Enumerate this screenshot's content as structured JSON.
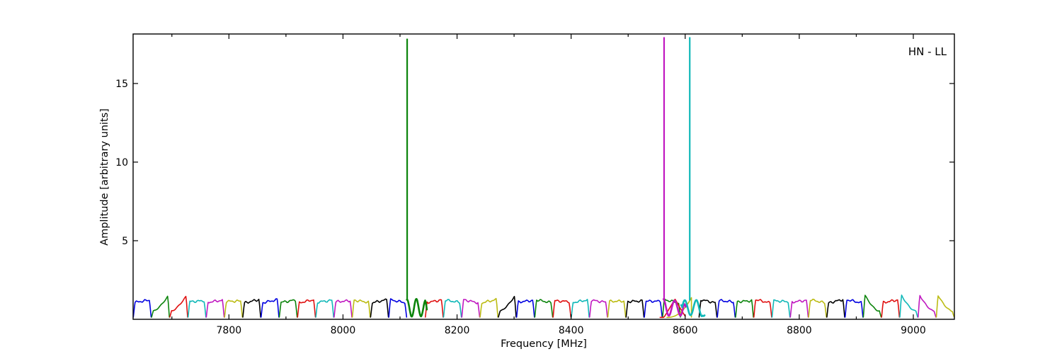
{
  "figure": {
    "annotation": "HN - LL",
    "xlabel": "Frequency [MHz]",
    "ylabel": "Amplitude [arbitrary units]"
  },
  "chart_data": {
    "type": "line",
    "title": "HN - LL",
    "xlabel": "Frequency [MHz]",
    "ylabel": "Amplitude [arbitrary units]",
    "xlim": [
      7632,
      9072
    ],
    "ylim": [
      0,
      18.15
    ],
    "x_ticks": [
      7800,
      8000,
      8200,
      8400,
      8600,
      8800,
      9000
    ],
    "x_minor_ticks": [
      7700,
      7900,
      8100,
      8300,
      8500,
      8700,
      8900
    ],
    "y_ticks": [
      5,
      10,
      15
    ],
    "grid": false,
    "legend": null,
    "band_width_mhz": 32,
    "band_plateau_amplitude": 1.15,
    "palette": {
      "b": "#0000e0",
      "g": "#0b840b",
      "r": "#e01010",
      "c": "#10b8b8",
      "m": "#c018c0",
      "y": "#bcbc14",
      "k": "#000000"
    },
    "bandpasses": [
      {
        "f0": 7632,
        "f1": 7664,
        "color": "b",
        "shape": "flat"
      },
      {
        "f0": 7664,
        "f1": 7696,
        "color": "g",
        "shape": "rise"
      },
      {
        "f0": 7696,
        "f1": 7728,
        "color": "r",
        "shape": "rise"
      },
      {
        "f0": 7728,
        "f1": 7760,
        "color": "c",
        "shape": "flat"
      },
      {
        "f0": 7760,
        "f1": 7792,
        "color": "m",
        "shape": "flat"
      },
      {
        "f0": 7792,
        "f1": 7824,
        "color": "y",
        "shape": "flat"
      },
      {
        "f0": 7824,
        "f1": 7856,
        "color": "k",
        "shape": "flat"
      },
      {
        "f0": 7856,
        "f1": 7888,
        "color": "b",
        "shape": "flat"
      },
      {
        "f0": 7888,
        "f1": 7920,
        "color": "g",
        "shape": "flat"
      },
      {
        "f0": 7920,
        "f1": 7952,
        "color": "r",
        "shape": "flat"
      },
      {
        "f0": 7952,
        "f1": 7984,
        "color": "c",
        "shape": "flat"
      },
      {
        "f0": 7984,
        "f1": 8016,
        "color": "m",
        "shape": "flat"
      },
      {
        "f0": 8016,
        "f1": 8048,
        "color": "y",
        "shape": "flat"
      },
      {
        "f0": 8048,
        "f1": 8080,
        "color": "k",
        "shape": "flat"
      },
      {
        "f0": 8080,
        "f1": 8112,
        "color": "b",
        "shape": "flat"
      },
      {
        "f0": 8144,
        "f1": 8176,
        "color": "r",
        "shape": "flat"
      },
      {
        "f0": 8176,
        "f1": 8208,
        "color": "c",
        "shape": "flat"
      },
      {
        "f0": 8208,
        "f1": 8240,
        "color": "m",
        "shape": "flat"
      },
      {
        "f0": 8240,
        "f1": 8272,
        "color": "y",
        "shape": "flat"
      },
      {
        "f0": 8272,
        "f1": 8304,
        "color": "k",
        "shape": "rise"
      },
      {
        "f0": 8304,
        "f1": 8336,
        "color": "b",
        "shape": "flat"
      },
      {
        "f0": 8336,
        "f1": 8368,
        "color": "g",
        "shape": "flat"
      },
      {
        "f0": 8368,
        "f1": 8400,
        "color": "r",
        "shape": "flat"
      },
      {
        "f0": 8400,
        "f1": 8432,
        "color": "c",
        "shape": "flat"
      },
      {
        "f0": 8432,
        "f1": 8464,
        "color": "m",
        "shape": "flat"
      },
      {
        "f0": 8464,
        "f1": 8496,
        "color": "y",
        "shape": "flat"
      },
      {
        "f0": 8496,
        "f1": 8528,
        "color": "k",
        "shape": "flat"
      },
      {
        "f0": 8528,
        "f1": 8560,
        "color": "b",
        "shape": "flat"
      },
      {
        "f0": 8560,
        "f1": 8592,
        "color": "g",
        "shape": "flat"
      },
      {
        "f0": 8624,
        "f1": 8656,
        "color": "k",
        "shape": "flat"
      },
      {
        "f0": 8656,
        "f1": 8688,
        "color": "b",
        "shape": "flat"
      },
      {
        "f0": 8688,
        "f1": 8720,
        "color": "g",
        "shape": "flat"
      },
      {
        "f0": 8720,
        "f1": 8752,
        "color": "r",
        "shape": "flat"
      },
      {
        "f0": 8752,
        "f1": 8784,
        "color": "c",
        "shape": "flat"
      },
      {
        "f0": 8784,
        "f1": 8816,
        "color": "m",
        "shape": "flat"
      },
      {
        "f0": 8816,
        "f1": 8848,
        "color": "y",
        "shape": "flat"
      },
      {
        "f0": 8848,
        "f1": 8880,
        "color": "k",
        "shape": "flat"
      },
      {
        "f0": 8880,
        "f1": 8912,
        "color": "b",
        "shape": "flat"
      },
      {
        "f0": 8912,
        "f1": 8944,
        "color": "g",
        "shape": "fall"
      },
      {
        "f0": 8944,
        "f1": 8976,
        "color": "r",
        "shape": "flat"
      },
      {
        "f0": 8976,
        "f1": 9008,
        "color": "c",
        "shape": "fall"
      },
      {
        "f0": 9008,
        "f1": 9040,
        "color": "m",
        "shape": "fall"
      },
      {
        "f0": 9040,
        "f1": 9072,
        "color": "y",
        "shape": "fall"
      }
    ],
    "rfi_features": [
      {
        "kind": "wavy_band",
        "color": "g",
        "f0": 8112,
        "f1": 8147,
        "cycles": 2.1,
        "phase": 0.0,
        "spike_f": 8112.5,
        "spike_amp": 17.85
      },
      {
        "kind": "triangle_band",
        "color": "r",
        "f0": 8556,
        "f1": 8600,
        "peak_f": 8582,
        "peak_amp": 1.3
      },
      {
        "kind": "ramp_band",
        "color": "y",
        "f0": 8568,
        "f1": 8611,
        "peak_amp": 1.38
      },
      {
        "kind": "wavy_band",
        "color": "m",
        "f0": 8562,
        "f1": 8601,
        "cycles": 2.0,
        "phase": 0.0,
        "spike_f": 8563,
        "spike_amp": 17.95
      },
      {
        "kind": "wavy_band",
        "color": "c",
        "f0": 8593,
        "f1": 8634,
        "cycles": 2.1,
        "phase": 0.66,
        "spike_f": 8608,
        "spike_amp": 17.95
      }
    ]
  }
}
